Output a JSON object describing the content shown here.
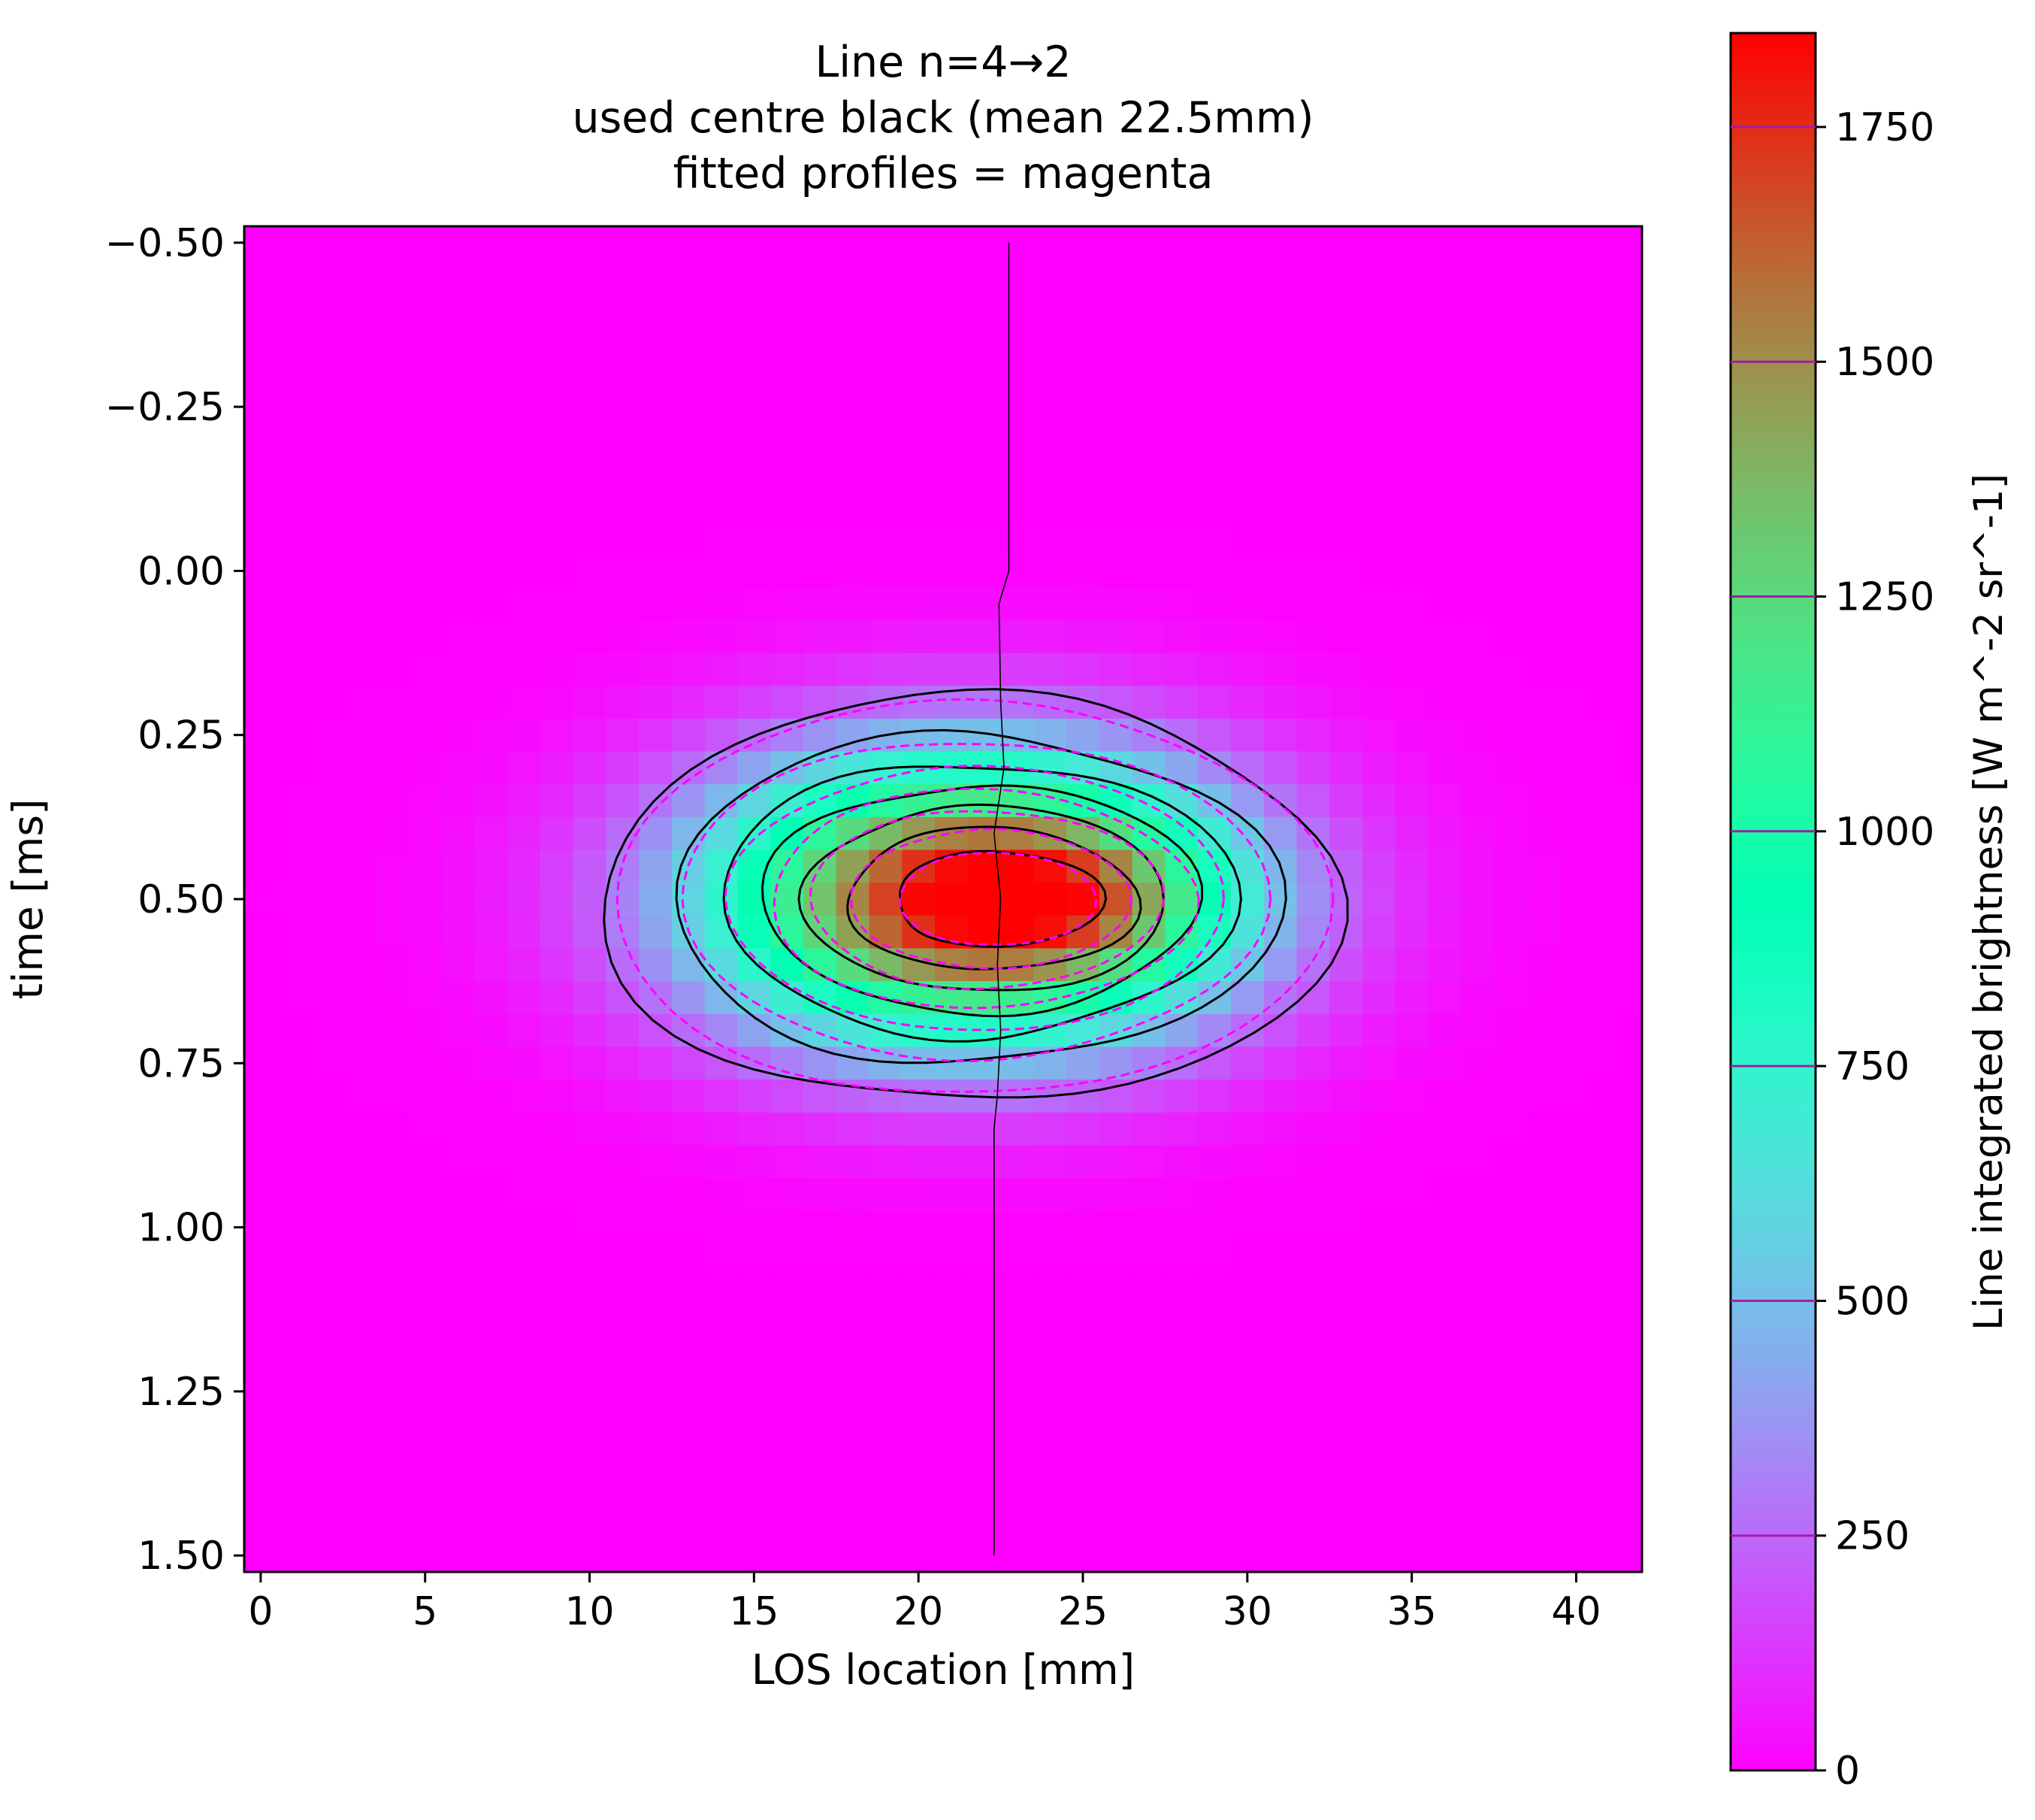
{
  "chart_data": {
    "type": "heatmap",
    "title_lines": [
      "Line n=4→2",
      "used centre black (mean 22.5mm)",
      "fitted profiles = magenta"
    ],
    "xlabel": "LOS location [mm]",
    "ylabel": "time [ms]",
    "colorbar_label": "Line integrated brightness [W m^-2 sr^-1]",
    "colormap": "rainbow",
    "xlim": [
      -0.5,
      42
    ],
    "ylim": [
      -0.525,
      1.525
    ],
    "y_inverted": true,
    "clim": [
      0,
      1850
    ],
    "x_ticks": [
      0,
      5,
      10,
      15,
      20,
      25,
      30,
      35,
      40
    ],
    "x_tick_labels": [
      "0",
      "5",
      "10",
      "15",
      "20",
      "25",
      "30",
      "35",
      "40"
    ],
    "y_ticks": [
      -0.5,
      -0.25,
      0.0,
      0.25,
      0.5,
      0.75,
      1.0,
      1.25,
      1.5
    ],
    "y_tick_labels": [
      "−0.50",
      "−0.25",
      "0.00",
      "0.25",
      "0.50",
      "0.75",
      "1.00",
      "1.25",
      "1.50"
    ],
    "colorbar_ticks": [
      0,
      250,
      500,
      750,
      1000,
      1250,
      1500,
      1750
    ],
    "colorbar_tick_labels": [
      "0",
      "250",
      "500",
      "750",
      "1000",
      "1250",
      "1500",
      "1750"
    ],
    "contour_levels": [
      250,
      500,
      750,
      1000,
      1250,
      1500,
      1750
    ],
    "grid_x": {
      "start": 0,
      "step": 1,
      "count": 43
    },
    "grid_y": {
      "start": -0.5,
      "step": 0.05,
      "count": 41
    },
    "peak": {
      "amplitude": 1840,
      "x0": 21.5,
      "t0": 0.5,
      "sigma_x": 5.6,
      "sigma_t": 0.155
    },
    "secondary_peak": {
      "amplitude": 330,
      "x0": 25.5,
      "t0": 0.5,
      "sigma_x": 3.0,
      "sigma_t": 0.08
    },
    "centre_line": {
      "color": "black",
      "mean": 22.5,
      "points": [
        [
          22.75,
          -0.5
        ],
        [
          22.75,
          0.0
        ],
        [
          22.45,
          0.05
        ],
        [
          22.5,
          0.2
        ],
        [
          22.6,
          0.3
        ],
        [
          22.3,
          0.4
        ],
        [
          22.5,
          0.5
        ],
        [
          22.4,
          0.6
        ],
        [
          22.5,
          0.7
        ],
        [
          22.4,
          0.8
        ],
        [
          22.3,
          0.85
        ],
        [
          22.3,
          1.5
        ]
      ]
    },
    "fitted_profiles_color": "magenta"
  }
}
